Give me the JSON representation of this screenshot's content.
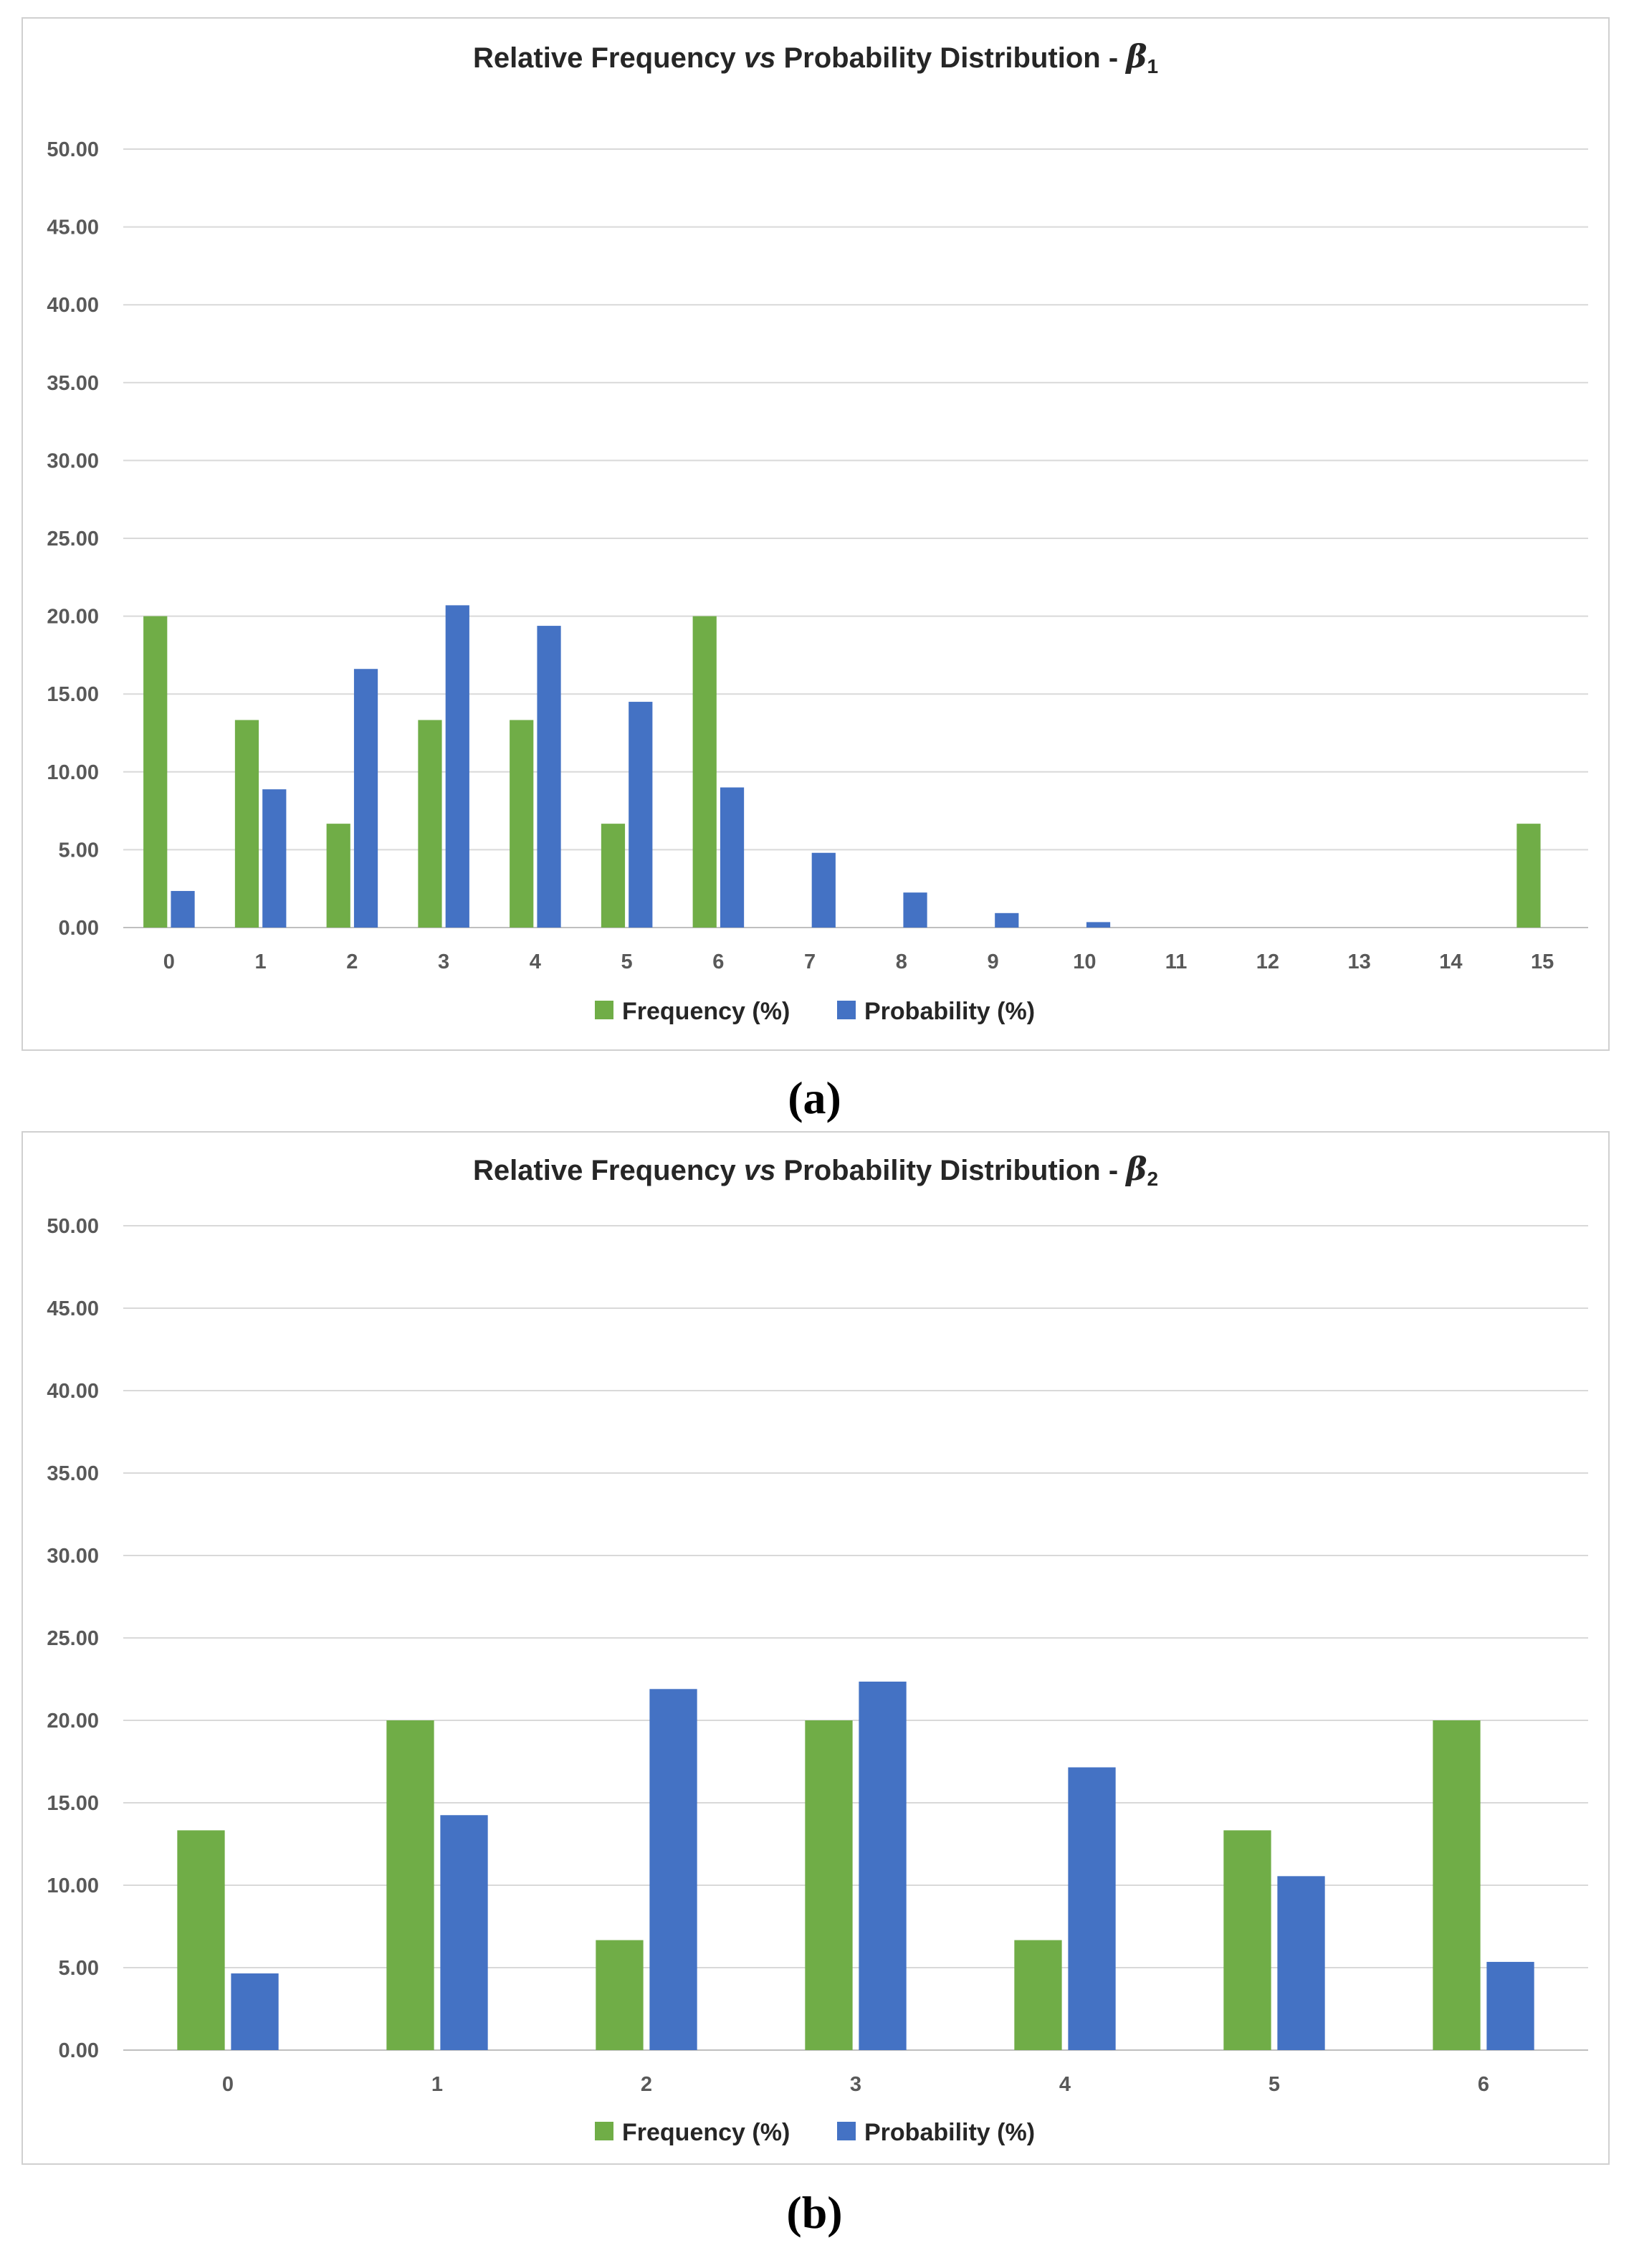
{
  "colors": {
    "frequency": "#70AD47",
    "probability": "#4472C4",
    "grid": "#d9d9d9",
    "axis": "#bfbfbf"
  },
  "chart_data": [
    {
      "type": "bar",
      "title": "Relative Frequency vs Probability Distribution - β1",
      "title_parts": {
        "prefix": "Relative Frequency ",
        "vs": "vs",
        "middle": " Probability Distribution - ",
        "symbol": "β",
        "subscript": "1"
      },
      "xlabel": "",
      "ylabel": "",
      "ylim": [
        0,
        50
      ],
      "yticks": [
        "0.00",
        "5.00",
        "10.00",
        "15.00",
        "20.00",
        "25.00",
        "30.00",
        "35.00",
        "40.00",
        "45.00",
        "50.00"
      ],
      "grid": true,
      "legend_position": "bottom",
      "categories": [
        "0",
        "1",
        "2",
        "3",
        "4",
        "5",
        "6",
        "7",
        "8",
        "9",
        "10",
        "11",
        "12",
        "13",
        "14",
        "15"
      ],
      "series": [
        {
          "name": "Frequency (%)",
          "values": [
            20.0,
            13.33,
            6.67,
            13.33,
            13.33,
            6.67,
            20.0,
            0,
            0,
            0,
            0,
            0,
            0,
            0,
            0,
            6.67
          ]
        },
        {
          "name": "Probability (%)",
          "values": [
            2.35,
            8.88,
            16.61,
            20.7,
            19.38,
            14.5,
            9.0,
            4.8,
            2.25,
            0.93,
            0.35,
            0,
            0,
            0,
            0,
            0
          ]
        }
      ],
      "caption": "(a)"
    },
    {
      "type": "bar",
      "title": "Relative Frequency vs Probability Distribution - β2",
      "title_parts": {
        "prefix": "Relative Frequency ",
        "vs": "vs",
        "middle": " Probability Distribution - ",
        "symbol": "β",
        "subscript": "2"
      },
      "xlabel": "",
      "ylabel": "",
      "ylim": [
        0,
        50
      ],
      "yticks": [
        "0.00",
        "5.00",
        "10.00",
        "15.00",
        "20.00",
        "25.00",
        "30.00",
        "35.00",
        "40.00",
        "45.00",
        "50.00"
      ],
      "grid": true,
      "legend_position": "bottom",
      "categories": [
        "0",
        "1",
        "2",
        "3",
        "4",
        "5",
        "6"
      ],
      "series": [
        {
          "name": "Frequency (%)",
          "values": [
            13.33,
            20.0,
            6.67,
            20.0,
            6.67,
            13.33,
            20.0
          ]
        },
        {
          "name": "Probability (%)",
          "values": [
            4.65,
            14.25,
            21.9,
            22.35,
            17.15,
            10.55,
            5.35
          ]
        }
      ],
      "caption": "(b)"
    }
  ]
}
